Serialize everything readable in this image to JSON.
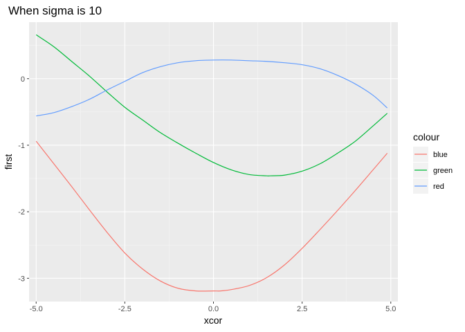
{
  "chart_data": {
    "type": "line",
    "title": "When sigma is 10",
    "xlabel": "xcor",
    "ylabel": "first",
    "xlim": [
      -5.2,
      5.2
    ],
    "ylim": [
      -3.35,
      0.85
    ],
    "x_ticks": [
      -5.0,
      -2.5,
      0.0,
      2.5,
      5.0
    ],
    "x_tick_labels": [
      "-5.0",
      "-2.5",
      "0.0",
      "2.5",
      "5.0"
    ],
    "y_ticks": [
      -3,
      -2,
      -1,
      0
    ],
    "y_tick_labels": [
      "-3",
      "-2",
      "-1",
      "0"
    ],
    "grid": true,
    "legend": {
      "title": "colour",
      "position": "right",
      "entries": [
        {
          "label": "blue",
          "color": "#F8766D"
        },
        {
          "label": "green",
          "color": "#00BA38"
        },
        {
          "label": "red",
          "color": "#619CFF"
        }
      ]
    },
    "series": [
      {
        "name": "blue",
        "color": "#F8766D",
        "x": [
          -5.0,
          -4.5,
          -4.0,
          -3.5,
          -3.0,
          -2.5,
          -2.0,
          -1.5,
          -1.0,
          -0.5,
          0.0,
          0.2,
          0.5,
          1.0,
          1.5,
          2.0,
          2.5,
          3.0,
          3.5,
          4.0,
          4.5,
          4.9
        ],
        "y": [
          -0.94,
          -1.28,
          -1.62,
          -1.97,
          -2.31,
          -2.62,
          -2.86,
          -3.04,
          -3.15,
          -3.19,
          -3.19,
          -3.19,
          -3.17,
          -3.11,
          -2.99,
          -2.8,
          -2.55,
          -2.27,
          -1.98,
          -1.68,
          -1.37,
          -1.12
        ]
      },
      {
        "name": "green",
        "color": "#00BA38",
        "x": [
          -5.0,
          -4.5,
          -4.0,
          -3.5,
          -3.0,
          -2.5,
          -2.0,
          -1.5,
          -1.0,
          -0.5,
          0.0,
          0.5,
          1.0,
          1.5,
          1.6,
          2.0,
          2.5,
          3.0,
          3.5,
          4.0,
          4.5,
          4.9
        ],
        "y": [
          0.66,
          0.48,
          0.26,
          0.04,
          -0.2,
          -0.43,
          -0.62,
          -0.81,
          -0.97,
          -1.12,
          -1.26,
          -1.37,
          -1.44,
          -1.46,
          -1.46,
          -1.45,
          -1.39,
          -1.28,
          -1.12,
          -0.94,
          -0.71,
          -0.52
        ]
      },
      {
        "name": "red",
        "color": "#619CFF",
        "x": [
          -5.0,
          -4.5,
          -4.0,
          -3.5,
          -3.0,
          -2.5,
          -2.0,
          -1.5,
          -1.0,
          -0.5,
          0.0,
          0.5,
          1.0,
          1.5,
          2.0,
          2.5,
          3.0,
          3.5,
          4.0,
          4.5,
          4.9
        ],
        "y": [
          -0.56,
          -0.51,
          -0.42,
          -0.31,
          -0.17,
          -0.04,
          0.09,
          0.18,
          0.24,
          0.27,
          0.28,
          0.28,
          0.27,
          0.26,
          0.24,
          0.21,
          0.15,
          0.05,
          -0.08,
          -0.25,
          -0.44
        ]
      }
    ]
  }
}
